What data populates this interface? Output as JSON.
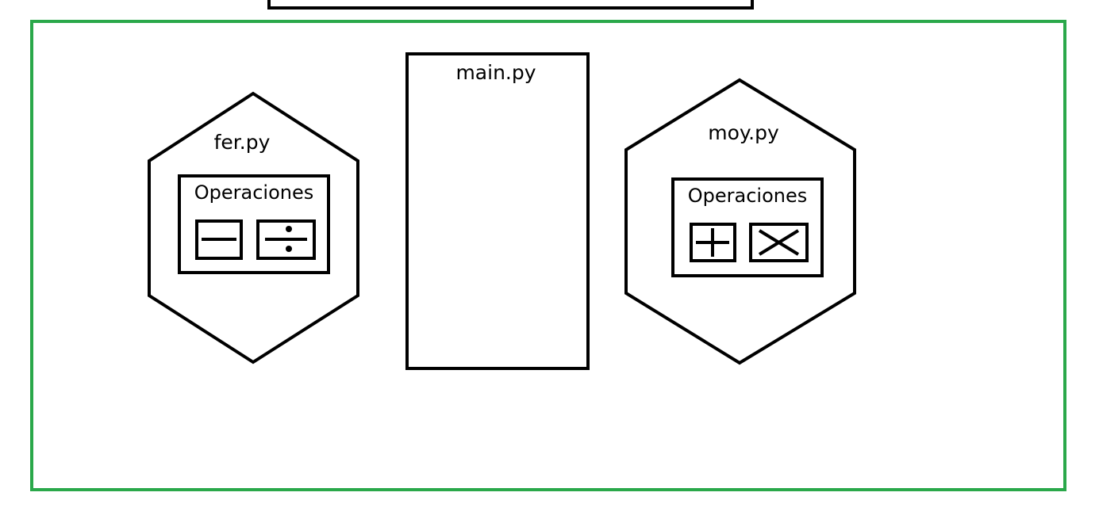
{
  "colors": {
    "stroke": "#000000",
    "container_border": "#2aa84a",
    "background": "#ffffff"
  },
  "main_module": {
    "name": "main.py"
  },
  "modules": [
    {
      "name": "fer.py",
      "panel": {
        "title": "Operaciones",
        "operations": [
          {
            "icon": "minus-icon"
          },
          {
            "icon": "divide-icon"
          }
        ]
      }
    },
    {
      "name": "moy.py",
      "panel": {
        "title": "Operaciones",
        "operations": [
          {
            "icon": "plus-icon"
          },
          {
            "icon": "multiply-icon"
          }
        ]
      }
    }
  ]
}
